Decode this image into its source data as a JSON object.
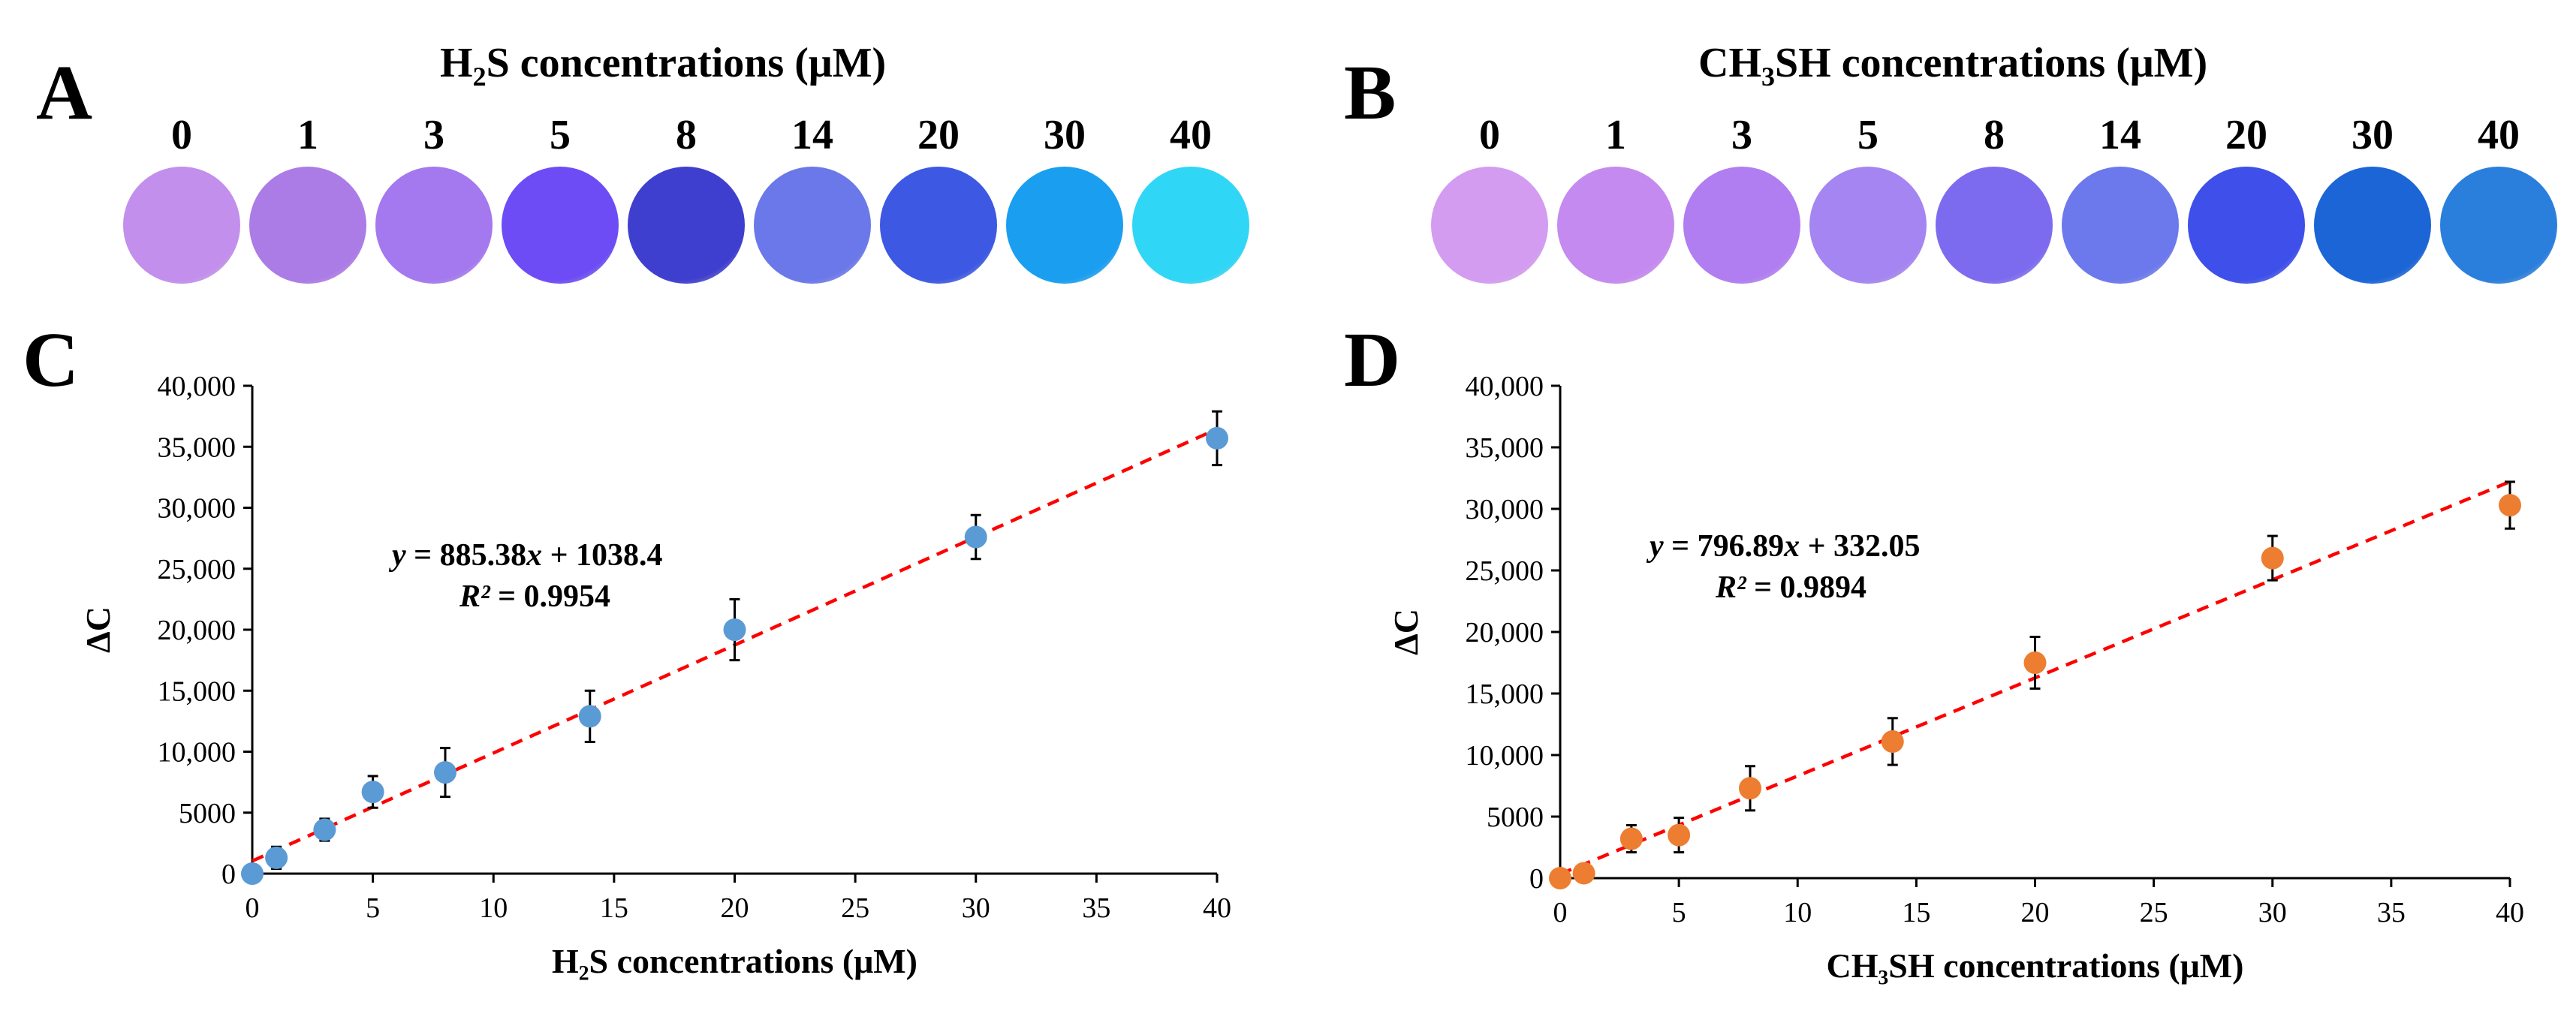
{
  "panels": {
    "A": {
      "label": "A",
      "title_pre": "H",
      "title_sub": "2",
      "title_post": "S concentrations (μM)",
      "concentrations": [
        "0",
        "1",
        "3",
        "5",
        "8",
        "14",
        "20",
        "30",
        "40"
      ],
      "colors": [
        "#c28fec",
        "#ab7be6",
        "#a478ee",
        "#6d4cf5",
        "#3f3fcf",
        "#6b78ea",
        "#3d58e3",
        "#1a9ef0",
        "#2fd6f6"
      ]
    },
    "B": {
      "label": "B",
      "title_pre": "CH",
      "title_sub": "3",
      "title_post": "SH concentrations (μM)",
      "concentrations": [
        "0",
        "1",
        "3",
        "5",
        "8",
        "14",
        "20",
        "30",
        "40"
      ],
      "colors": [
        "#d39cf0",
        "#c58aef",
        "#b07ef0",
        "#a485f1",
        "#7d6bef",
        "#6b79ec",
        "#3e4fea",
        "#1b65d6",
        "#2b7fdc"
      ]
    },
    "C": {
      "label": "C"
    },
    "D": {
      "label": "D"
    }
  },
  "chart_data": [
    {
      "type": "scatter",
      "panel": "C",
      "xlabel": "H₂S concentrations (μM)",
      "ylabel": "ΔC",
      "x_ticks": [
        "0",
        "5",
        "10",
        "15",
        "20",
        "25",
        "30",
        "35",
        "40"
      ],
      "y_ticks": [
        "0",
        "5000",
        "10,000",
        "15,000",
        "20,000",
        "25,000",
        "30,000",
        "35,000",
        "40,000"
      ],
      "xlim": [
        0,
        40
      ],
      "ylim": [
        0,
        40000
      ],
      "color": "#5b9bd5",
      "fit_color": "#ff0000",
      "series": [
        {
          "name": "H2S",
          "x": [
            0,
            1,
            3,
            5,
            8,
            14,
            20,
            30,
            40
          ],
          "y": [
            0,
            1300,
            3600,
            6700,
            8300,
            12900,
            20000,
            27600,
            35700
          ],
          "err": [
            300,
            900,
            900,
            1300,
            2000,
            2100,
            2500,
            1800,
            2200
          ]
        }
      ],
      "fit": {
        "slope": 885.38,
        "intercept": 1038.4
      },
      "equation_prefix": "y",
      "equation_body": " = 885.38",
      "equation_x": "x",
      "equation_tail": " + 1038.4",
      "r2_label": "R²",
      "r2_value": " = 0.9954"
    },
    {
      "type": "scatter",
      "panel": "D",
      "xlabel": "CH₃SH concentrations (μM)",
      "ylabel": "ΔC",
      "x_ticks": [
        "0",
        "5",
        "10",
        "15",
        "20",
        "25",
        "30",
        "35",
        "40"
      ],
      "y_ticks": [
        "0",
        "5000",
        "10,000",
        "15,000",
        "20,000",
        "25,000",
        "30,000",
        "35,000",
        "40,000"
      ],
      "xlim": [
        0,
        40
      ],
      "ylim": [
        0,
        40000
      ],
      "color": "#ed7d31",
      "fit_color": "#ff0000",
      "series": [
        {
          "name": "CH3SH",
          "x": [
            0,
            1,
            3,
            5,
            8,
            14,
            20,
            30,
            40
          ],
          "y": [
            0,
            400,
            3200,
            3500,
            7300,
            11100,
            17500,
            26000,
            30300
          ],
          "err": [
            300,
            700,
            1100,
            1400,
            1800,
            1900,
            2100,
            1800,
            1900
          ]
        }
      ],
      "fit": {
        "slope": 796.89,
        "intercept": 332.05
      },
      "equation_prefix": "y",
      "equation_body": " = 796.89",
      "equation_x": "x",
      "equation_tail": " + 332.05",
      "r2_label": "R²",
      "r2_value": " = 0.9894"
    }
  ]
}
